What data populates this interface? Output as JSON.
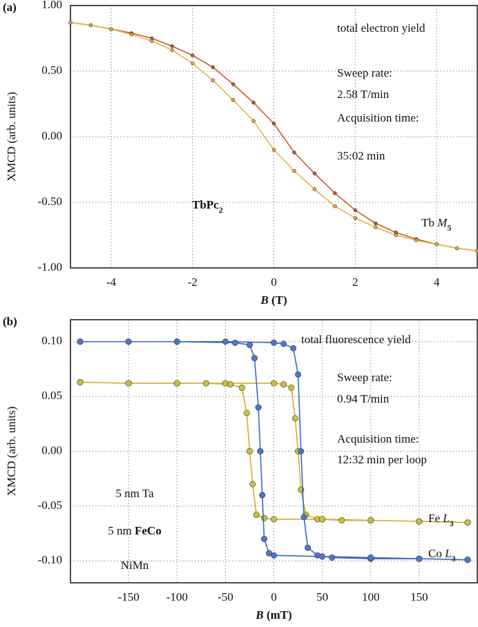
{
  "chart_data": [
    {
      "type": "scatter",
      "panel_label": "(a)",
      "x_label": [
        "B",
        " (T)"
      ],
      "y_label": "XMCD (arb. units)",
      "x": [
        -5,
        -4.5,
        -4,
        -3.5,
        -3,
        -2.5,
        -2,
        -1.5,
        -1,
        -0.5,
        0,
        0.5,
        1,
        1.5,
        2,
        2.5,
        3,
        3.5,
        4,
        4.5,
        5
      ],
      "series": [
        {
          "color": "#c4572a",
          "values": [
            0.87,
            0.85,
            0.82,
            0.79,
            0.75,
            0.69,
            0.62,
            0.53,
            0.4,
            0.26,
            0.1,
            -0.12,
            -0.28,
            -0.43,
            -0.56,
            -0.66,
            -0.73,
            -0.78,
            -0.82,
            -0.85,
            -0.87
          ]
        },
        {
          "color": "#e8b040",
          "values": [
            0.87,
            0.85,
            0.82,
            0.78,
            0.73,
            0.66,
            0.56,
            0.43,
            0.28,
            0.12,
            -0.1,
            -0.26,
            -0.4,
            -0.53,
            -0.62,
            -0.69,
            -0.75,
            -0.79,
            -0.82,
            -0.85,
            -0.87
          ]
        }
      ],
      "xlim": [
        -5,
        5
      ],
      "xticks": [
        -4,
        -2,
        0,
        2,
        4
      ],
      "ylim": [
        -1,
        1
      ],
      "yticks": [
        {
          "value": 1,
          "label": "1.00"
        },
        {
          "value": 0.5,
          "label": "0.50"
        },
        {
          "value": 0,
          "label": "0.00"
        },
        {
          "value": -0.5,
          "label": "-0.50"
        },
        {
          "value": -1,
          "label": "-1.00"
        }
      ],
      "grid": true,
      "annotations": {
        "yield": "total electron yield",
        "sweep_label": "Sweep rate:",
        "sweep_value": "2.58 T/min",
        "time_label": "Acquisition time:",
        "time_value": "35:02 min",
        "curve_label": [
          "Tb ",
          "M",
          "5"
        ],
        "molecule": [
          "TbPc",
          "2"
        ]
      }
    },
    {
      "type": "scatter",
      "panel_label": "(b)",
      "x_label": [
        "B",
        " (mT)"
      ],
      "y_label": "XMCD (arb. units)",
      "series": [
        {
          "color": "#d9a830",
          "marker": "#c9c23a",
          "x": [
            -200,
            -150,
            -100,
            -50,
            0,
            10,
            18,
            22,
            25,
            28,
            33,
            45,
            70,
            100,
            150,
            200,
            200,
            150,
            100,
            50,
            0,
            -10,
            -18,
            -22,
            -25,
            -28,
            -33,
            -45,
            -70,
            -100,
            -150,
            -200
          ],
          "values": [
            0.063,
            0.062,
            0.062,
            0.062,
            0.062,
            0.061,
            0.058,
            0.03,
            0,
            -0.035,
            -0.058,
            -0.062,
            -0.063,
            -0.063,
            -0.064,
            -0.065,
            -0.065,
            -0.064,
            -0.063,
            -0.062,
            -0.062,
            -0.061,
            -0.058,
            -0.03,
            0,
            0.035,
            0.058,
            0.061,
            0.062,
            0.062,
            0.062,
            0.063
          ]
        },
        {
          "color": "#3a66c4",
          "marker": "#4a78d0",
          "x": [
            -200,
            -150,
            -100,
            -50,
            0,
            10,
            20,
            25,
            28,
            31,
            35,
            45,
            60,
            100,
            150,
            200,
            200,
            150,
            100,
            50,
            0,
            -5,
            -10,
            -12,
            -14,
            -16,
            -20,
            -25,
            -40,
            -100,
            -150,
            -200
          ],
          "values": [
            0.1,
            0.1,
            0.1,
            0.1,
            0.099,
            0.098,
            0.094,
            0.07,
            0,
            -0.06,
            -0.088,
            -0.095,
            -0.097,
            -0.098,
            -0.098,
            -0.099,
            -0.099,
            -0.098,
            -0.097,
            -0.096,
            -0.095,
            -0.093,
            -0.08,
            -0.04,
            0,
            0.04,
            0.085,
            0.097,
            0.099,
            0.1,
            0.1,
            0.1
          ]
        }
      ],
      "xlim": [
        -210,
        210
      ],
      "xticks": [
        -150,
        -100,
        -50,
        0,
        50,
        100,
        150
      ],
      "ylim": [
        -0.12,
        0.12
      ],
      "yticks": [
        {
          "value": 0.1,
          "label": "0.10"
        },
        {
          "value": 0.05,
          "label": "0.05"
        },
        {
          "value": 0,
          "label": "0.00"
        },
        {
          "value": -0.05,
          "label": "-0.05"
        },
        {
          "value": -0.1,
          "label": "-0.10"
        }
      ],
      "grid": true,
      "annotations": {
        "yield": "total fluorescence yield",
        "sweep_label": "Sweep rate:",
        "sweep_value": "0.94 T/min",
        "time_label": "Acquisition time:",
        "time_value": "12:32 min per loop",
        "curve_label_fe": [
          "Fe ",
          "L",
          "3"
        ],
        "curve_label_co": [
          "Co ",
          "L",
          "3"
        ],
        "layer_top": "5 nm Ta",
        "layer_mid": [
          "5 nm ",
          "FeCo"
        ],
        "layer_bottom": "NiMn"
      }
    }
  ]
}
